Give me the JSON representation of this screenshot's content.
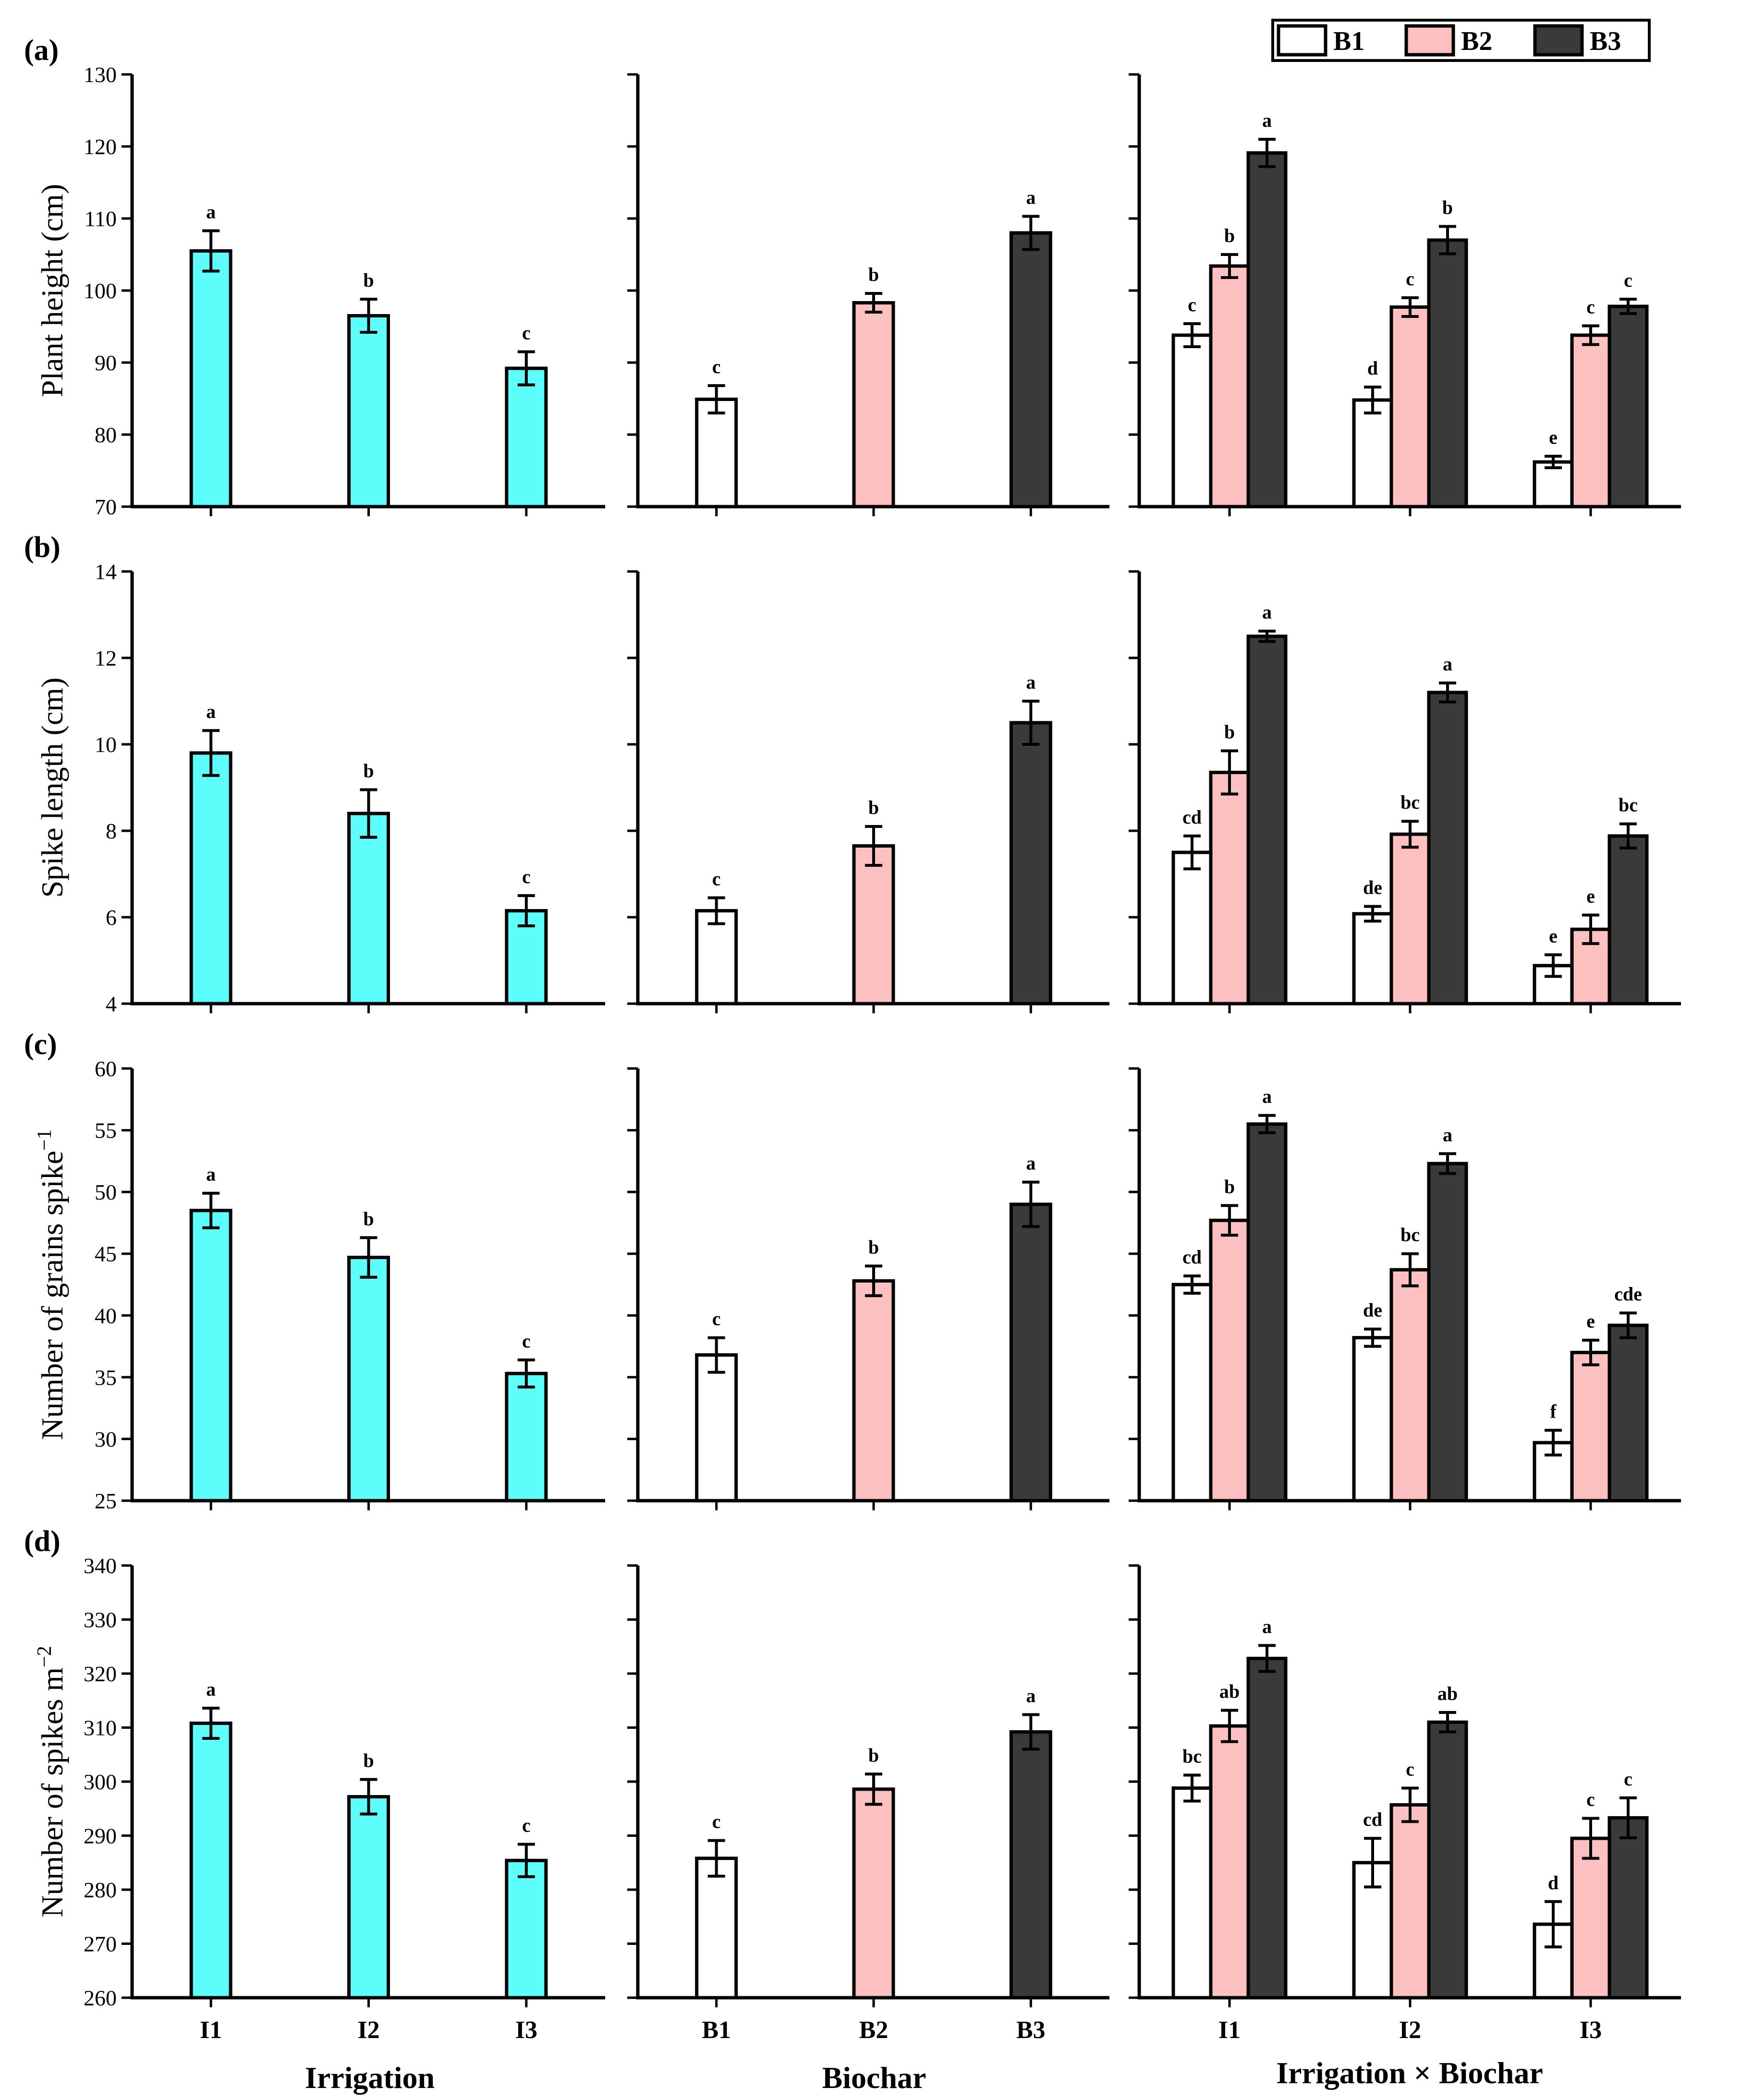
{
  "colors": {
    "B1": "#ffffff",
    "B2": "#fdc0c0",
    "B3": "#3a3a3a",
    "irrigation": "#5dfdfc",
    "axis": "#000000"
  },
  "legend": {
    "items": [
      "B1",
      "B2",
      "B3"
    ]
  },
  "x_axis_titles": [
    "Irrigation",
    "Biochar",
    "Irrigation × Biochar"
  ],
  "chart_data": [
    {
      "panel": "(a)",
      "type": "bar",
      "ylabel": "Plant height (cm)",
      "ylim": [
        70,
        130
      ],
      "yticks": [
        70,
        80,
        90,
        100,
        110,
        120,
        130
      ],
      "irrigation": {
        "categories": [
          "I1",
          "I2",
          "I3"
        ],
        "values": [
          105.5,
          96.5,
          89.2
        ],
        "errors": [
          2.8,
          2.3,
          2.3
        ],
        "letters": [
          "a",
          "b",
          "c"
        ]
      },
      "biochar": {
        "categories": [
          "B1",
          "B2",
          "B3"
        ],
        "values": [
          84.9,
          98.3,
          108.0
        ],
        "errors": [
          1.9,
          1.3,
          2.3
        ],
        "letters": [
          "c",
          "b",
          "a"
        ]
      },
      "interaction": {
        "categories": [
          "I1",
          "I2",
          "I3"
        ],
        "series": [
          {
            "name": "B1",
            "values": [
              93.8,
              84.8,
              76.2
            ],
            "errors": [
              1.6,
              1.8,
              0.8
            ],
            "letters": [
              "c",
              "d",
              "e"
            ]
          },
          {
            "name": "B2",
            "values": [
              103.4,
              97.7,
              93.8
            ],
            "errors": [
              1.6,
              1.3,
              1.3
            ],
            "letters": [
              "b",
              "c",
              "c"
            ]
          },
          {
            "name": "B3",
            "values": [
              119.1,
              107.0,
              97.8
            ],
            "errors": [
              1.9,
              1.9,
              1.0
            ],
            "letters": [
              "a",
              "b",
              "c"
            ]
          }
        ]
      }
    },
    {
      "panel": "(b)",
      "type": "bar",
      "ylabel": "Spike length (cm)",
      "ylim": [
        4,
        14
      ],
      "yticks": [
        4,
        6,
        8,
        10,
        12,
        14
      ],
      "irrigation": {
        "categories": [
          "I1",
          "I2",
          "I3"
        ],
        "values": [
          9.8,
          8.4,
          6.15
        ],
        "errors": [
          0.52,
          0.55,
          0.35
        ],
        "letters": [
          "a",
          "b",
          "c"
        ]
      },
      "biochar": {
        "categories": [
          "B1",
          "B2",
          "B3"
        ],
        "values": [
          6.15,
          7.65,
          10.5
        ],
        "errors": [
          0.3,
          0.45,
          0.5
        ],
        "letters": [
          "c",
          "b",
          "a"
        ]
      },
      "interaction": {
        "categories": [
          "I1",
          "I2",
          "I3"
        ],
        "series": [
          {
            "name": "B1",
            "values": [
              7.5,
              6.08,
              4.88
            ],
            "errors": [
              0.38,
              0.17,
              0.25
            ],
            "letters": [
              "cd",
              "de",
              "e"
            ]
          },
          {
            "name": "B2",
            "values": [
              9.35,
              7.92,
              5.72
            ],
            "errors": [
              0.5,
              0.3,
              0.33
            ],
            "letters": [
              "b",
              "bc",
              "e"
            ]
          },
          {
            "name": "B3",
            "values": [
              12.5,
              11.2,
              7.88
            ],
            "errors": [
              0.12,
              0.22,
              0.28
            ],
            "letters": [
              "a",
              "a",
              "bc"
            ]
          }
        ]
      }
    },
    {
      "panel": "(c)",
      "type": "bar",
      "ylabel": "Number of grains spike",
      "ylabel_sup": "−1",
      "ylim": [
        25,
        60
      ],
      "yticks": [
        25,
        30,
        35,
        40,
        45,
        50,
        55,
        60
      ],
      "irrigation": {
        "categories": [
          "I1",
          "I2",
          "I3"
        ],
        "values": [
          48.5,
          44.7,
          35.3
        ],
        "errors": [
          1.4,
          1.6,
          1.1
        ],
        "letters": [
          "a",
          "b",
          "c"
        ]
      },
      "biochar": {
        "categories": [
          "B1",
          "B2",
          "B3"
        ],
        "values": [
          36.8,
          42.8,
          49.0
        ],
        "errors": [
          1.4,
          1.2,
          1.8
        ],
        "letters": [
          "c",
          "b",
          "a"
        ]
      },
      "interaction": {
        "categories": [
          "I1",
          "I2",
          "I3"
        ],
        "series": [
          {
            "name": "B1",
            "values": [
              42.5,
              38.2,
              29.7
            ],
            "errors": [
              0.7,
              0.7,
              1.0
            ],
            "letters": [
              "cd",
              "de",
              "f"
            ]
          },
          {
            "name": "B2",
            "values": [
              47.7,
              43.7,
              37.0
            ],
            "errors": [
              1.2,
              1.3,
              1.0
            ],
            "letters": [
              "b",
              "bc",
              "e"
            ]
          },
          {
            "name": "B3",
            "values": [
              55.5,
              52.3,
              39.2
            ],
            "errors": [
              0.7,
              0.8,
              1.0
            ],
            "letters": [
              "a",
              "a",
              "cde"
            ]
          }
        ]
      }
    },
    {
      "panel": "(d)",
      "type": "bar",
      "ylabel": "Number of spikes m",
      "ylabel_sup": "−2",
      "ylim": [
        260,
        340
      ],
      "yticks": [
        260,
        270,
        280,
        290,
        300,
        310,
        320,
        330,
        340
      ],
      "irrigation": {
        "categories": [
          "I1",
          "I2",
          "I3"
        ],
        "values": [
          310.8,
          297.2,
          285.4
        ],
        "errors": [
          2.8,
          3.2,
          3.0
        ],
        "letters": [
          "a",
          "b",
          "c"
        ]
      },
      "biochar": {
        "categories": [
          "B1",
          "B2",
          "B3"
        ],
        "values": [
          285.8,
          298.6,
          309.2
        ],
        "errors": [
          3.3,
          2.8,
          3.2
        ],
        "letters": [
          "c",
          "b",
          "a"
        ]
      },
      "interaction": {
        "categories": [
          "I1",
          "I2",
          "I3"
        ],
        "series": [
          {
            "name": "B1",
            "values": [
              298.8,
              285.0,
              273.6
            ],
            "errors": [
              2.4,
              4.5,
              4.2
            ],
            "letters": [
              "bc",
              "cd",
              "d"
            ]
          },
          {
            "name": "B2",
            "values": [
              310.3,
              295.7,
              289.5
            ],
            "errors": [
              2.9,
              3.1,
              3.7
            ],
            "letters": [
              "ab",
              "c",
              "c"
            ]
          },
          {
            "name": "B3",
            "values": [
              322.8,
              311.0,
              293.3
            ],
            "errors": [
              2.4,
              1.8,
              3.7
            ],
            "letters": [
              "a",
              "ab",
              "c"
            ]
          }
        ]
      }
    }
  ]
}
